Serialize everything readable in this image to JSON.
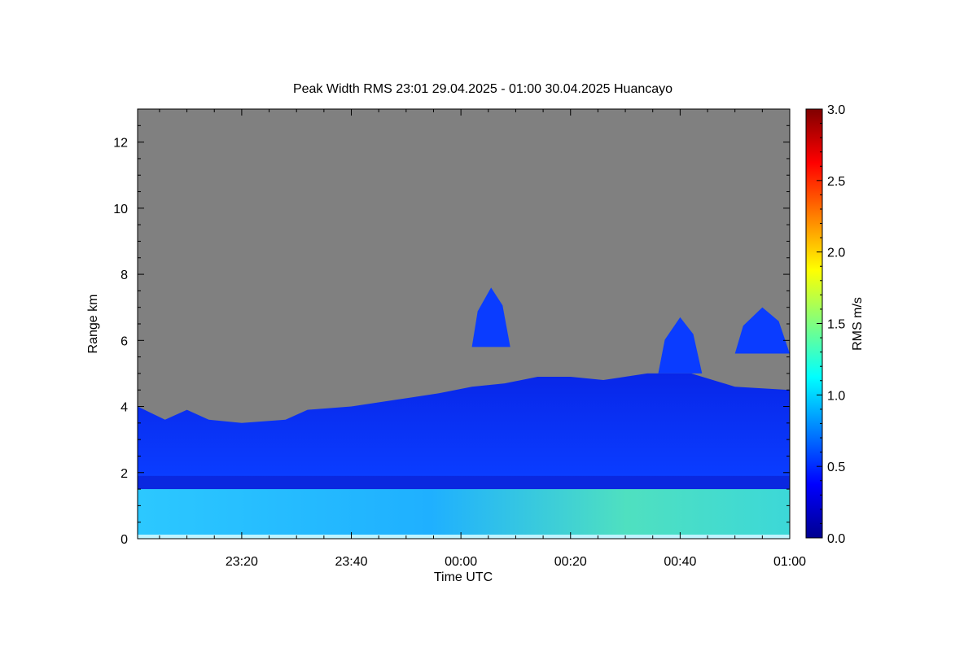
{
  "chart_data": {
    "type": "heatmap",
    "title": "Peak Width RMS   23:01 29.04.2025 - 01:00 30.04.2025 Huancayo",
    "xlabel": "Time UTC",
    "ylabel": "Range km",
    "x_range_minutes": [
      -59,
      60
    ],
    "x_ticks": [
      {
        "label": "23:20",
        "value": -40
      },
      {
        "label": "23:40",
        "value": -20
      },
      {
        "label": "00:00",
        "value": 0
      },
      {
        "label": "00:20",
        "value": 20
      },
      {
        "label": "00:40",
        "value": 40
      },
      {
        "label": "01:00",
        "value": 60
      }
    ],
    "ylim": [
      0,
      13
    ],
    "y_ticks": [
      0,
      2,
      4,
      6,
      8,
      10,
      12
    ],
    "colorbar": {
      "label": "RMS m/s",
      "range": [
        0,
        3
      ],
      "ticks": [
        "0.0",
        "0.5",
        "1.0",
        "1.5",
        "2.0",
        "2.5",
        "3.0"
      ]
    },
    "no_data_color": "#808080",
    "echo_top_km": [
      {
        "t": -59,
        "h": 4.0
      },
      {
        "t": -54,
        "h": 3.6
      },
      {
        "t": -50,
        "h": 3.9
      },
      {
        "t": -46,
        "h": 3.6
      },
      {
        "t": -40,
        "h": 3.5
      },
      {
        "t": -32,
        "h": 3.6
      },
      {
        "t": -28,
        "h": 3.9
      },
      {
        "t": -20,
        "h": 4.0
      },
      {
        "t": -12,
        "h": 4.2
      },
      {
        "t": -4,
        "h": 4.4
      },
      {
        "t": 2,
        "h": 4.6
      },
      {
        "t": 8,
        "h": 4.7
      },
      {
        "t": 14,
        "h": 4.9
      },
      {
        "t": 20,
        "h": 4.9
      },
      {
        "t": 26,
        "h": 4.8
      },
      {
        "t": 34,
        "h": 5.0
      },
      {
        "t": 42,
        "h": 5.0
      },
      {
        "t": 50,
        "h": 4.6
      },
      {
        "t": 60,
        "h": 4.5
      }
    ],
    "cloud_patches": [
      {
        "t0": 2,
        "t1": 9,
        "top_km": 7.6,
        "bottom_km": 5.8
      },
      {
        "t0": 36,
        "t1": 44,
        "top_km": 6.7,
        "bottom_km": 5.0
      },
      {
        "t0": 50,
        "t1": 60,
        "top_km": 7.0,
        "bottom_km": 5.6
      }
    ],
    "boundary_layer_top_km": 1.5
  }
}
